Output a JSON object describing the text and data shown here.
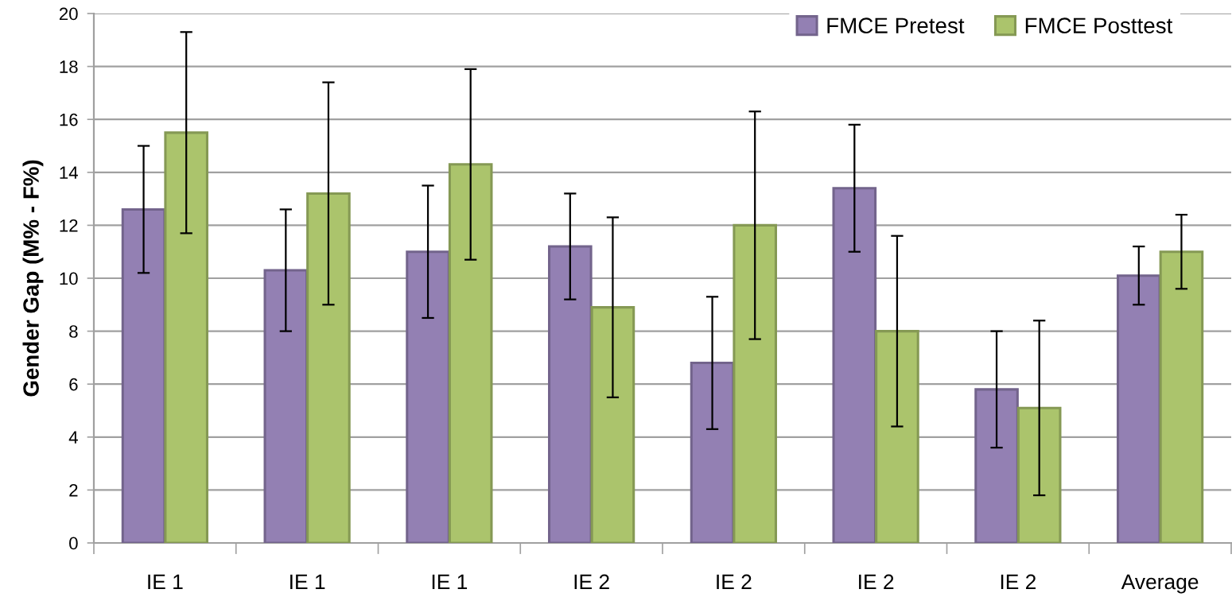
{
  "chart_data": {
    "type": "bar",
    "ylabel": "Gender Gap (M% - F%)",
    "categories": [
      "IE 1",
      "IE 1",
      "IE 1",
      "IE 2",
      "IE 2",
      "IE 2",
      "IE 2",
      "Average"
    ],
    "series": [
      {
        "name": "FMCE Pretest",
        "color": "#9380b3",
        "values": [
          12.6,
          10.3,
          11.0,
          11.2,
          6.8,
          13.4,
          5.8,
          10.1
        ],
        "errors": [
          2.4,
          2.3,
          2.5,
          2.0,
          2.5,
          2.4,
          2.2,
          1.1
        ]
      },
      {
        "name": "FMCE Posttest",
        "color": "#abc46c",
        "values": [
          15.5,
          13.2,
          14.3,
          8.9,
          12.0,
          8.0,
          5.1,
          11.0
        ],
        "errors": [
          3.8,
          4.2,
          3.6,
          3.4,
          4.3,
          3.6,
          3.3,
          1.4
        ]
      }
    ],
    "ylim": [
      0,
      20
    ],
    "yticks": [
      0,
      2,
      4,
      6,
      8,
      10,
      12,
      14,
      16,
      18,
      20
    ],
    "grid": "y",
    "legend": "top right"
  }
}
